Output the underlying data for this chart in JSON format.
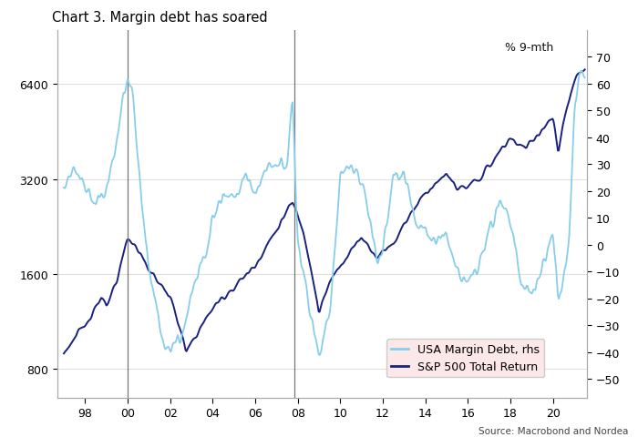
{
  "title": "Chart 3. Margin debt has soared",
  "source_text": "Source: Macrobond and Nordea",
  "pct_label": "% 9-mth",
  "legend_items": [
    "USA Margin Debt, rhs",
    "S&P 500 Total Return"
  ],
  "legend_colors": [
    "#87CEEB",
    "#1a237e"
  ],
  "line1_color": "#87CEEB",
  "line2_color": "#1a2080",
  "vline_color": "#777777",
  "vline_years": [
    2000.0,
    2007.83
  ],
  "left_yticks": [
    800,
    1600,
    3200,
    6400
  ],
  "left_ylim": [
    650,
    9500
  ],
  "right_yticks": [
    -50,
    -40,
    -30,
    -20,
    -10,
    0,
    10,
    20,
    30,
    40,
    50,
    60,
    70
  ],
  "right_ylim": [
    -57,
    80
  ],
  "xticks": [
    1998,
    2000,
    2002,
    2004,
    2006,
    2008,
    2010,
    2012,
    2014,
    2016,
    2018,
    2020
  ],
  "xlabels": [
    "98",
    "00",
    "02",
    "04",
    "06",
    "08",
    "10",
    "12",
    "14",
    "16",
    "18",
    "20"
  ],
  "xlim": [
    1996.7,
    2021.6
  ],
  "background_color": "#ffffff",
  "grid_color": "#dddddd",
  "legend_bg": "#fce8e8",
  "title_fontsize": 10.5,
  "label_fontsize": 9,
  "tick_fontsize": 9
}
